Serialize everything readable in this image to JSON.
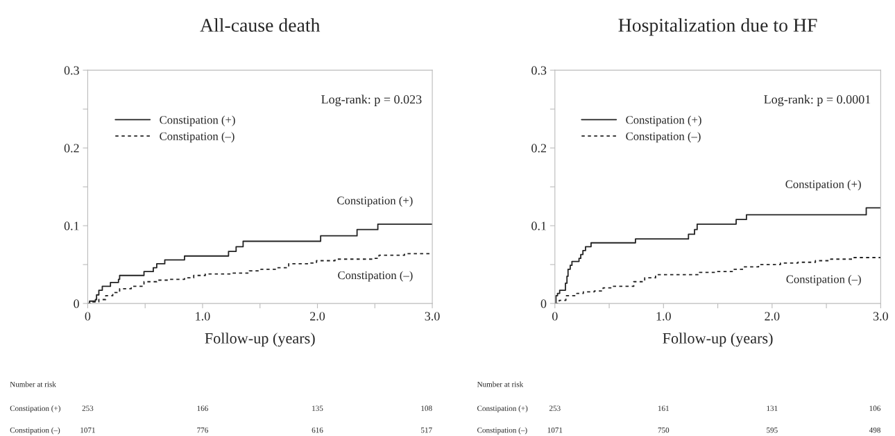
{
  "chart_data": [
    {
      "type": "step",
      "title": "All-cause death",
      "xlabel": "Follow-up (years)",
      "xlim": [
        0,
        3
      ],
      "ylim": [
        0,
        0.3
      ],
      "xticks": [
        {
          "value": 0,
          "label": "0"
        },
        {
          "value": 0.5,
          "label": null
        },
        {
          "value": 1,
          "label": "1.0"
        },
        {
          "value": 1.5,
          "label": null
        },
        {
          "value": 2,
          "label": "2.0"
        },
        {
          "value": 2.5,
          "label": null
        },
        {
          "value": 3,
          "label": "3.0"
        }
      ],
      "yticks": [
        {
          "value": 0,
          "label": "0"
        },
        {
          "value": 0.05,
          "label": null
        },
        {
          "value": 0.1,
          "label": "0.1"
        },
        {
          "value": 0.15,
          "label": null
        },
        {
          "value": 0.2,
          "label": "0.2"
        },
        {
          "value": 0.25,
          "label": null
        },
        {
          "value": 0.3,
          "label": "0.3"
        }
      ],
      "grid": false,
      "legend": "upper left",
      "marker": "none",
      "series": [
        {
          "name": "Constipation (+)",
          "color": "#222222",
          "line_style": "solid",
          "x": [
            0,
            0.016,
            0.067,
            0.077,
            0.097,
            0.127,
            0.198,
            0.268,
            0.278,
            0.49,
            0.571,
            0.601,
            0.671,
            0.843,
            1.226,
            1.292,
            1.353,
            2.028,
            2.345,
            2.526,
            3.0
          ],
          "values": [
            0,
            0.003,
            0.005,
            0.011,
            0.017,
            0.022,
            0.027,
            0.031,
            0.036,
            0.041,
            0.046,
            0.051,
            0.056,
            0.061,
            0.067,
            0.073,
            0.08,
            0.087,
            0.095,
            0.102,
            0.102
          ]
        },
        {
          "name": "Constipation (–)",
          "color": "#222222",
          "line_style": "dashed",
          "x": [
            0,
            0.036,
            0.097,
            0.157,
            0.218,
            0.278,
            0.379,
            0.49,
            0.601,
            0.702,
            0.843,
            0.923,
            1.024,
            1.266,
            1.407,
            1.508,
            1.649,
            1.75,
            1.931,
            1.992,
            2.153,
            2.496,
            2.536,
            2.758,
            3.0
          ],
          "values": [
            0,
            0.002,
            0.005,
            0.01,
            0.014,
            0.019,
            0.022,
            0.028,
            0.03,
            0.031,
            0.033,
            0.036,
            0.038,
            0.039,
            0.042,
            0.044,
            0.046,
            0.051,
            0.052,
            0.055,
            0.057,
            0.058,
            0.062,
            0.064,
            0.064
          ]
        }
      ],
      "annotations": [
        "Log-rank: p = 0.023",
        "Constipation (+)",
        "Constipation (–)",
        "Number at risk",
        "Constipation (+)",
        "253",
        "166",
        "135",
        "108",
        "Constipation (–)",
        "1071",
        "776",
        "616",
        "517"
      ]
    },
    {
      "type": "step",
      "title": "Hospitalization due to HF",
      "xlabel": "Follow-up (years)",
      "xlim": [
        0,
        3
      ],
      "ylim": [
        0,
        0.3
      ],
      "xticks": [
        {
          "value": 0,
          "label": "0"
        },
        {
          "value": 0.5,
          "label": null
        },
        {
          "value": 1,
          "label": "1.0"
        },
        {
          "value": 1.5,
          "label": null
        },
        {
          "value": 2,
          "label": "2.0"
        },
        {
          "value": 2.5,
          "label": null
        },
        {
          "value": 3,
          "label": "3.0"
        }
      ],
      "yticks": [
        {
          "value": 0,
          "label": "0"
        },
        {
          "value": 0.05,
          "label": null
        },
        {
          "value": 0.1,
          "label": "0.1"
        },
        {
          "value": 0.15,
          "label": null
        },
        {
          "value": 0.2,
          "label": "0.2"
        },
        {
          "value": 0.25,
          "label": null
        },
        {
          "value": 0.3,
          "label": "0.3"
        }
      ],
      "grid": false,
      "legend": "upper left",
      "marker": "none",
      "series": [
        {
          "name": "Constipation (+)",
          "color": "#222222",
          "line_style": "solid",
          "x": [
            0,
            0.01,
            0.024,
            0.044,
            0.097,
            0.111,
            0.121,
            0.141,
            0.157,
            0.222,
            0.238,
            0.258,
            0.282,
            0.333,
            0.742,
            1.23,
            1.286,
            1.31,
            1.669,
            1.764,
            2.867,
            3.0
          ],
          "values": [
            0,
            0.01,
            0.013,
            0.017,
            0.026,
            0.035,
            0.044,
            0.049,
            0.054,
            0.058,
            0.063,
            0.068,
            0.073,
            0.078,
            0.083,
            0.089,
            0.095,
            0.102,
            0.108,
            0.114,
            0.123,
            0.123
          ]
        },
        {
          "name": "Constipation (–)",
          "color": "#222222",
          "line_style": "dashed",
          "x": [
            0,
            0.04,
            0.101,
            0.202,
            0.262,
            0.363,
            0.444,
            0.524,
            0.625,
            0.726,
            0.827,
            0.927,
            1.23,
            1.331,
            1.492,
            1.633,
            1.734,
            1.875,
            2.077,
            2.238,
            2.399,
            2.54,
            2.742,
            3.0
          ],
          "values": [
            0,
            0.004,
            0.01,
            0.013,
            0.015,
            0.016,
            0.02,
            0.022,
            0.022,
            0.028,
            0.033,
            0.037,
            0.037,
            0.04,
            0.041,
            0.044,
            0.047,
            0.05,
            0.052,
            0.053,
            0.055,
            0.057,
            0.059,
            0.059
          ]
        }
      ],
      "annotations": [
        "Log-rank: p = 0.0001",
        "Constipation (+)",
        "Constipation (–)",
        "Number at risk",
        "Constipation (+)",
        "253",
        "161",
        "131",
        "106",
        "Constipation (–)",
        "1071",
        "750",
        "595",
        "498"
      ]
    }
  ]
}
